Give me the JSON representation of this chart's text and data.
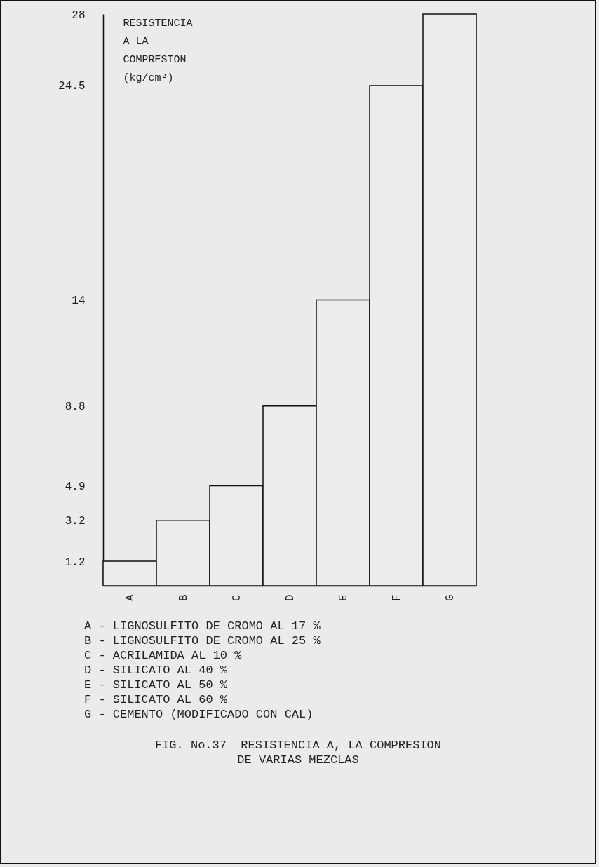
{
  "chart_data": {
    "type": "bar",
    "title": "FIG. No.37  RESISTENCIA A, LA COMPRESION\nDE VARIAS MEZCLAS",
    "ylabel": "RESISTENCIA\n A LA\nCOMPRESION\n(kg/cm²)",
    "categories": [
      "A",
      "B",
      "C",
      "D",
      "E",
      "F",
      "G"
    ],
    "values": [
      1.2,
      3.2,
      4.9,
      8.8,
      14,
      24.5,
      28
    ],
    "color": "#ececec",
    "ylim": [
      0,
      28
    ],
    "yticks": [
      1.2,
      3.2,
      4.9,
      8.8,
      14,
      24.5,
      28
    ],
    "grid": false,
    "legend": false,
    "annotations": [
      "A - LIGNOSULFITO DE CROMO AL 17 %",
      "B - LIGNOSULFITO DE CROMO AL 25 %",
      "C - ACRILAMIDA AL 10 %",
      "D - SILICATO AL 40 %",
      "E - SILICATO AL 50 %",
      "F - SILICATO AL 60 %",
      "G - CEMENTO (MODIFICADO CON CAL)"
    ]
  }
}
